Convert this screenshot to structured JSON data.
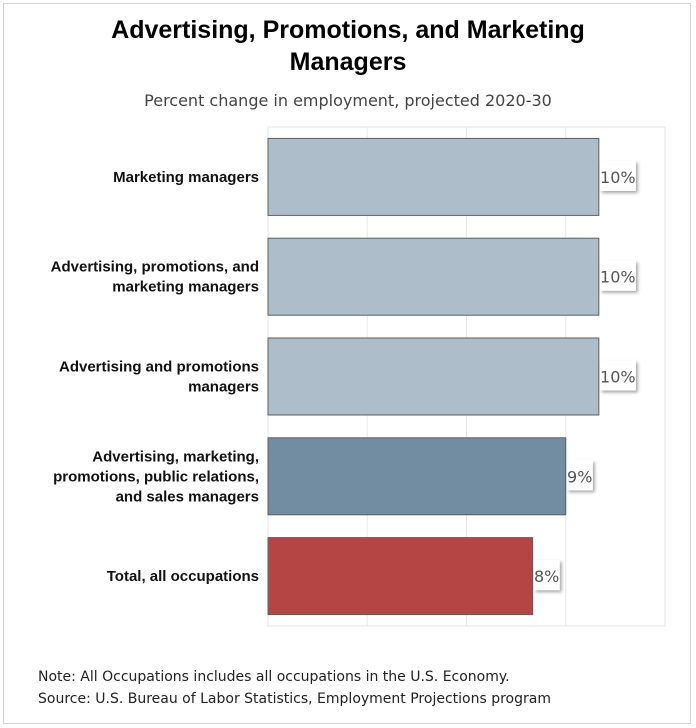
{
  "chart_data": {
    "type": "bar",
    "orientation": "horizontal",
    "title": "Advertising, Promotions, and Marketing Managers",
    "title_lines": [
      "Advertising, Promotions, and Marketing",
      "Managers"
    ],
    "subtitle": "Percent change in employment, projected 2020-30",
    "categories": [
      "Marketing managers",
      "Advertising, promotions, and marketing managers",
      "Advertising and promotions managers",
      "Advertising, marketing, promotions, public relations, and sales managers",
      "Total, all occupations"
    ],
    "category_lines": [
      [
        "Marketing managers"
      ],
      [
        "Advertising, promotions, and",
        "marketing managers"
      ],
      [
        "Advertising and promotions",
        "managers"
      ],
      [
        "Advertising, marketing,",
        "promotions, public relations,",
        "and sales managers"
      ],
      [
        "Total, all occupations"
      ]
    ],
    "values": [
      10,
      10,
      10,
      9,
      8
    ],
    "value_labels": [
      "10%",
      "10%",
      "10%",
      "9%",
      "8%"
    ],
    "bar_colors": [
      "#adbdc9",
      "#adbdc9",
      "#adbdc9",
      "#728ca2",
      "#b54545"
    ],
    "xlim": [
      0,
      12
    ],
    "xgrid_step": 3,
    "grid": true,
    "legend": "none"
  },
  "notes": {
    "note": "Note: All Occupations includes all occupations in the U.S. Economy.",
    "source": "Source: U.S. Bureau of Labor Statistics, Employment Projections program"
  }
}
